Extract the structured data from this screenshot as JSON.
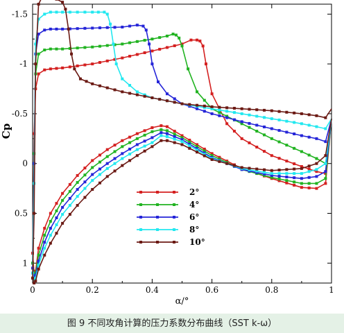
{
  "caption": "图 9  不同攻角计算的压力系数分布曲线（SST k-ω）",
  "chart_data": {
    "type": "line",
    "xlabel": "α/°",
    "ylabel": "Cp",
    "xlim": [
      0,
      1
    ],
    "ylim": [
      1.2,
      -1.6
    ],
    "y_inverted": true,
    "xticks": [
      0,
      0.2,
      0.4,
      0.6,
      0.8,
      1
    ],
    "xtick_labels": [
      "0",
      "0.2",
      "0.4",
      "0.6",
      "0.8",
      "1"
    ],
    "yticks": [
      -1.5,
      -1,
      -0.5,
      0,
      0.5,
      1
    ],
    "ytick_labels": [
      "-1.5",
      "-1",
      "-0.5",
      "0",
      "0.5",
      "1"
    ],
    "grid": false,
    "legend_position": "lower-center",
    "series": [
      {
        "name": "2°",
        "color": "#d42020",
        "upper": {
          "x": [
            0,
            0.005,
            0.01,
            0.02,
            0.04,
            0.06,
            0.1,
            0.2,
            0.3,
            0.4,
            0.5,
            0.53,
            0.55,
            0.56,
            0.57,
            0.58,
            0.6,
            0.65,
            0.7,
            0.8,
            0.9,
            0.95,
            0.98,
            1
          ],
          "y": [
            0.9,
            -0.3,
            -0.75,
            -0.9,
            -0.94,
            -0.95,
            -0.96,
            -1.0,
            -1.06,
            -1.13,
            -1.2,
            -1.24,
            -1.24,
            -1.23,
            -1.18,
            -1.0,
            -0.7,
            -0.4,
            -0.25,
            -0.08,
            0.03,
            0.08,
            0.1,
            -0.45
          ]
        },
        "lower": {
          "x": [
            0,
            0.005,
            0.01,
            0.02,
            0.04,
            0.06,
            0.1,
            0.15,
            0.2,
            0.25,
            0.3,
            0.35,
            0.4,
            0.43,
            0.45,
            0.5,
            0.6,
            0.7,
            0.8,
            0.9,
            0.95,
            0.98,
            1
          ],
          "y": [
            0.9,
            1.1,
            1.08,
            0.85,
            0.65,
            0.5,
            0.3,
            0.12,
            -0.03,
            -0.14,
            -0.23,
            -0.3,
            -0.36,
            -0.38,
            -0.37,
            -0.28,
            -0.1,
            0.05,
            0.15,
            0.24,
            0.25,
            0.2,
            -0.45
          ]
        }
      },
      {
        "name": "4°",
        "color": "#21b321",
        "upper": {
          "x": [
            0,
            0.005,
            0.01,
            0.02,
            0.04,
            0.06,
            0.1,
            0.2,
            0.3,
            0.4,
            0.45,
            0.47,
            0.48,
            0.49,
            0.5,
            0.52,
            0.55,
            0.6,
            0.7,
            0.8,
            0.9,
            0.95,
            0.98,
            1
          ],
          "y": [
            1.0,
            -0.1,
            -0.9,
            -1.1,
            -1.14,
            -1.15,
            -1.15,
            -1.17,
            -1.2,
            -1.25,
            -1.28,
            -1.3,
            -1.29,
            -1.26,
            -1.18,
            -0.95,
            -0.72,
            -0.55,
            -0.4,
            -0.25,
            -0.12,
            -0.05,
            0.0,
            -0.45
          ]
        },
        "lower": {
          "x": [
            0,
            0.005,
            0.01,
            0.02,
            0.04,
            0.06,
            0.1,
            0.15,
            0.2,
            0.25,
            0.3,
            0.35,
            0.4,
            0.43,
            0.45,
            0.5,
            0.6,
            0.7,
            0.8,
            0.9,
            0.95,
            0.98,
            1
          ],
          "y": [
            1.0,
            1.12,
            1.1,
            0.92,
            0.72,
            0.58,
            0.37,
            0.19,
            0.04,
            -0.07,
            -0.17,
            -0.25,
            -0.32,
            -0.34,
            -0.33,
            -0.26,
            -0.08,
            0.06,
            0.14,
            0.2,
            0.2,
            0.15,
            -0.45
          ]
        }
      },
      {
        "name": "6°",
        "color": "#2525d8",
        "upper": {
          "x": [
            0,
            0.005,
            0.01,
            0.02,
            0.04,
            0.06,
            0.1,
            0.2,
            0.3,
            0.35,
            0.37,
            0.38,
            0.39,
            0.4,
            0.42,
            0.45,
            0.5,
            0.6,
            0.7,
            0.8,
            0.9,
            0.95,
            0.98,
            1
          ],
          "y": [
            1.05,
            0.0,
            -1.1,
            -1.3,
            -1.34,
            -1.35,
            -1.35,
            -1.36,
            -1.37,
            -1.39,
            -1.38,
            -1.34,
            -1.2,
            -1.0,
            -0.82,
            -0.7,
            -0.6,
            -0.5,
            -0.42,
            -0.35,
            -0.28,
            -0.25,
            -0.22,
            -0.45
          ]
        },
        "lower": {
          "x": [
            0,
            0.005,
            0.01,
            0.02,
            0.04,
            0.06,
            0.1,
            0.15,
            0.2,
            0.25,
            0.3,
            0.35,
            0.4,
            0.43,
            0.45,
            0.5,
            0.6,
            0.7,
            0.8,
            0.9,
            0.95,
            0.98,
            1
          ],
          "y": [
            1.05,
            1.15,
            1.12,
            0.98,
            0.79,
            0.65,
            0.44,
            0.26,
            0.11,
            0.0,
            -0.1,
            -0.19,
            -0.26,
            -0.31,
            -0.3,
            -0.24,
            -0.06,
            0.06,
            0.12,
            0.15,
            0.13,
            0.08,
            -0.45
          ]
        }
      },
      {
        "name": "8°",
        "color": "#22e8f0",
        "upper": {
          "x": [
            0,
            0.005,
            0.01,
            0.02,
            0.04,
            0.06,
            0.1,
            0.2,
            0.24,
            0.25,
            0.26,
            0.27,
            0.28,
            0.3,
            0.35,
            0.4,
            0.5,
            0.6,
            0.7,
            0.8,
            0.9,
            0.95,
            0.98,
            1
          ],
          "y": [
            1.1,
            0.2,
            -1.2,
            -1.45,
            -1.5,
            -1.52,
            -1.52,
            -1.52,
            -1.52,
            -1.5,
            -1.4,
            -1.2,
            -1.0,
            -0.85,
            -0.72,
            -0.66,
            -0.6,
            -0.55,
            -0.5,
            -0.45,
            -0.4,
            -0.37,
            -0.35,
            -0.45
          ]
        },
        "lower": {
          "x": [
            0,
            0.005,
            0.01,
            0.02,
            0.04,
            0.06,
            0.1,
            0.15,
            0.2,
            0.25,
            0.3,
            0.35,
            0.4,
            0.43,
            0.45,
            0.5,
            0.6,
            0.7,
            0.8,
            0.9,
            0.95,
            0.98,
            1
          ],
          "y": [
            1.1,
            1.17,
            1.15,
            1.02,
            0.85,
            0.72,
            0.51,
            0.33,
            0.17,
            0.05,
            -0.05,
            -0.14,
            -0.21,
            -0.28,
            -0.27,
            -0.22,
            -0.05,
            0.05,
            0.1,
            0.1,
            0.06,
            0.0,
            -0.45
          ]
        }
      },
      {
        "name": "10°",
        "color": "#6b1a14",
        "upper": {
          "x": [
            0,
            0.005,
            0.01,
            0.02,
            0.03,
            0.04,
            0.06,
            0.08,
            0.1,
            0.11,
            0.12,
            0.13,
            0.14,
            0.16,
            0.2,
            0.25,
            0.3,
            0.4,
            0.5,
            0.6,
            0.7,
            0.8,
            0.9,
            0.95,
            0.98,
            1
          ],
          "y": [
            1.15,
            0.5,
            -1.0,
            -1.6,
            -1.66,
            -1.67,
            -1.67,
            -1.65,
            -1.62,
            -1.55,
            -1.35,
            -1.1,
            -0.95,
            -0.85,
            -0.8,
            -0.76,
            -0.72,
            -0.66,
            -0.6,
            -0.57,
            -0.55,
            -0.53,
            -0.5,
            -0.48,
            -0.46,
            -0.55
          ]
        },
        "lower": {
          "x": [
            0,
            0.005,
            0.01,
            0.02,
            0.04,
            0.06,
            0.1,
            0.15,
            0.2,
            0.25,
            0.3,
            0.35,
            0.4,
            0.43,
            0.45,
            0.5,
            0.6,
            0.7,
            0.8,
            0.9,
            0.95,
            0.98,
            1
          ],
          "y": [
            1.15,
            1.2,
            1.18,
            1.06,
            0.92,
            0.8,
            0.6,
            0.42,
            0.26,
            0.13,
            0.02,
            -0.08,
            -0.17,
            -0.23,
            -0.23,
            -0.19,
            -0.04,
            0.04,
            0.07,
            0.05,
            0.0,
            -0.08,
            -0.45
          ]
        }
      }
    ]
  }
}
